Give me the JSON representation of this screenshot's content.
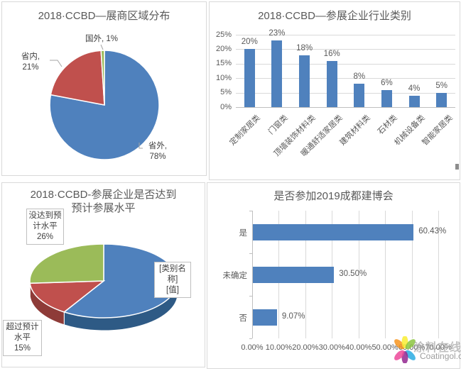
{
  "watermark": {
    "brand": "涂料在线",
    "site": "Coatingol.com",
    "petal_colors": [
      "#F7941D",
      "#F9ED32",
      "#8CC63F",
      "#29ABE2",
      "#93278F",
      "#EC4899"
    ]
  },
  "ui": {
    "colors": {
      "title": "#595959",
      "axis_text": "#595959",
      "label_text": "#404040",
      "grid": "#D9D9D9",
      "axis_line": "#BFBFBF",
      "panel_border": "#D9D9D9",
      "series_blue": "#4F81BD",
      "series_red": "#C0504D",
      "series_green": "#9BBB59"
    }
  },
  "chart_data": [
    {
      "id": "region-pie",
      "type": "pie",
      "title": "2018·CCBD—展商区域分布",
      "labels": [
        "省外",
        "省内",
        "国外"
      ],
      "values": [
        78,
        21,
        1
      ],
      "unit": "%",
      "colors": [
        "#4F81BD",
        "#C0504D",
        "#9BBB59"
      ],
      "callouts": [
        {
          "lines": [
            "省外,",
            "78%"
          ]
        },
        {
          "lines": [
            "省内,",
            "21%"
          ]
        },
        {
          "lines": [
            "国外, 1%"
          ]
        }
      ],
      "legend": "none"
    },
    {
      "id": "industry-bar",
      "type": "bar",
      "title": "2018·CCBD—参展企业行业类别",
      "categories": [
        "定制家居类",
        "门窗类",
        "顶墙装饰材料类",
        "暖通舒适家居类",
        "建筑材料类",
        "石材类",
        "机械设备类",
        "智能家居类"
      ],
      "values": [
        20,
        23,
        18,
        16,
        8,
        6,
        4,
        5
      ],
      "value_labels": [
        "20%",
        "23%",
        "18%",
        "16%",
        "8%",
        "6%",
        "4%",
        "5%"
      ],
      "yticks": [
        "0%",
        "5%",
        "10%",
        "15%",
        "20%",
        "25%"
      ],
      "ylim": [
        0,
        25
      ],
      "xlabel": "",
      "ylabel": "",
      "grid": true,
      "legend": "none",
      "bar_color": "#4F81BD"
    },
    {
      "id": "expectation-pie-3d",
      "type": "pie",
      "variant": "3d",
      "title": "2018·CCBD-参展企业是否达到预计参展水平",
      "title_lines": [
        "2018·CCBD-参展企业是否达到",
        "预计参展水平"
      ],
      "labels": [
        "[类别名称] [值]",
        "超过预计水平",
        "没达到预计水平"
      ],
      "values": [
        59,
        15,
        26
      ],
      "unit": "%",
      "colors": [
        "#4F81BD",
        "#C0504D",
        "#9BBB59"
      ],
      "side_colors": [
        "#2E5A85",
        "#8E3B38",
        "#76923C"
      ],
      "callouts": [
        {
          "lines": [
            "[类别名",
            "称]",
            "[值]"
          ]
        },
        {
          "lines": [
            "超过预计",
            "水平",
            "15%"
          ]
        },
        {
          "lines": [
            "没达到预",
            "计水平",
            "26%"
          ]
        }
      ],
      "legend": "none"
    },
    {
      "id": "attend-2019-bar",
      "type": "bar",
      "variant": "horizontal",
      "title": "是否参加2019成都建博会",
      "categories": [
        "是",
        "未确定",
        "否"
      ],
      "values": [
        60.43,
        30.5,
        9.07
      ],
      "value_labels": [
        "60.43%",
        "30.50%",
        "9.07%"
      ],
      "xticks": [
        "0.00%",
        "10.00%",
        "20.00%",
        "30.00%",
        "40.00%",
        "50.00%",
        "60.00%",
        "70.00%"
      ],
      "xlim": [
        0,
        70
      ],
      "grid": true,
      "legend": "none",
      "bar_color": "#4F81BD"
    }
  ]
}
